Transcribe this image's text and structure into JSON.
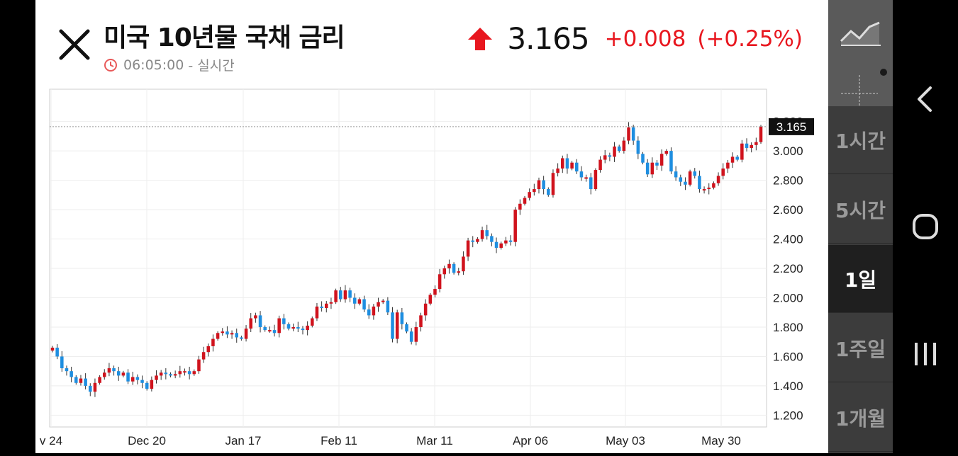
{
  "header": {
    "title": "미국 10년물 국채 금리",
    "time": "06:05:00",
    "time_suffix": "- 실시간",
    "price": "3.165",
    "change": "+0.008",
    "change_pct": "(+0.25%)",
    "up_color": "#e8171f"
  },
  "side_menu": {
    "tools": [
      {
        "name": "chart-type-button",
        "icon": "line-chart-icon"
      },
      {
        "name": "crosshair-button",
        "icon": "crosshair-icon"
      }
    ],
    "intervals": [
      {
        "label": "1시간",
        "active": false
      },
      {
        "label": "5시간",
        "active": false
      },
      {
        "label": "1일",
        "active": true
      },
      {
        "label": "1주일",
        "active": false
      },
      {
        "label": "1개월",
        "active": false
      }
    ]
  },
  "nav_bar": {
    "icons": [
      "back-icon",
      "home-icon",
      "recents-icon"
    ]
  },
  "chart_data": {
    "type": "candlestick",
    "x_ticks": [
      "v 24",
      "Dec 20",
      "Jan 17",
      "Feb 11",
      "Mar 11",
      "Apr 06",
      "May 03",
      "May 30"
    ],
    "y_ticks": [
      "3.200",
      "3.000",
      "2.800",
      "2.600",
      "2.400",
      "2.200",
      "2.000",
      "1.800",
      "1.600",
      "1.400",
      "1.200"
    ],
    "ylim": [
      1.12,
      3.42
    ],
    "last_value_label": "3.165",
    "last_value": 3.165,
    "up_color": "#d0131d",
    "down_color": "#1e8ee0",
    "grid": true,
    "close_series": [
      1.66,
      1.6,
      1.52,
      1.5,
      1.46,
      1.42,
      1.45,
      1.4,
      1.36,
      1.42,
      1.46,
      1.49,
      1.52,
      1.5,
      1.47,
      1.49,
      1.43,
      1.46,
      1.44,
      1.42,
      1.38,
      1.44,
      1.47,
      1.49,
      1.48,
      1.47,
      1.48,
      1.5,
      1.5,
      1.48,
      1.5,
      1.58,
      1.63,
      1.67,
      1.72,
      1.76,
      1.77,
      1.75,
      1.76,
      1.73,
      1.72,
      1.79,
      1.86,
      1.88,
      1.8,
      1.78,
      1.78,
      1.76,
      1.86,
      1.82,
      1.79,
      1.8,
      1.79,
      1.78,
      1.81,
      1.86,
      1.94,
      1.93,
      1.96,
      1.97,
      2.05,
      1.99,
      2.05,
      2.0,
      1.96,
      1.99,
      1.92,
      1.88,
      1.94,
      1.97,
      1.98,
      1.9,
      1.72,
      1.9,
      1.82,
      1.77,
      1.7,
      1.8,
      1.88,
      1.96,
      2.02,
      2.06,
      2.16,
      2.2,
      2.23,
      2.17,
      2.18,
      2.28,
      2.39,
      2.38,
      2.4,
      2.46,
      2.42,
      2.38,
      2.34,
      2.37,
      2.39,
      2.38,
      2.6,
      2.64,
      2.68,
      2.72,
      2.74,
      2.8,
      2.74,
      2.7,
      2.85,
      2.88,
      2.95,
      2.88,
      2.92,
      2.86,
      2.82,
      2.82,
      2.74,
      2.87,
      2.94,
      2.97,
      2.96,
      3.03,
      3.0,
      3.07,
      3.16,
      3.07,
      2.98,
      2.92,
      2.84,
      2.92,
      2.9,
      2.98,
      3.0,
      2.86,
      2.82,
      2.79,
      2.77,
      2.86,
      2.83,
      2.74,
      2.74,
      2.75,
      2.78,
      2.83,
      2.88,
      2.92,
      2.96,
      2.94,
      3.05,
      3.02,
      3.04,
      3.06,
      3.165
    ]
  }
}
